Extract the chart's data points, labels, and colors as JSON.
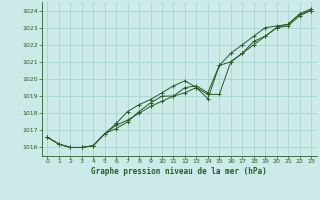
{
  "title": "Graphe pression niveau de la mer (hPa)",
  "bg_color": "#cceae8",
  "grid_color": "#aad4d0",
  "line_color": "#2d5a27",
  "xlim": [
    -0.5,
    23.5
  ],
  "ylim": [
    1015.5,
    1024.5
  ],
  "xticks": [
    0,
    1,
    2,
    3,
    4,
    5,
    6,
    7,
    8,
    9,
    10,
    11,
    12,
    13,
    14,
    15,
    16,
    17,
    18,
    19,
    20,
    21,
    22,
    23
  ],
  "yticks": [
    1016,
    1017,
    1018,
    1019,
    1020,
    1021,
    1022,
    1023,
    1024
  ],
  "line1_x": [
    0,
    1,
    2,
    3,
    4,
    5,
    6,
    7,
    8,
    9,
    10,
    11,
    12,
    13,
    14,
    15,
    16,
    17,
    18,
    19,
    20,
    21,
    22,
    23
  ],
  "line1_y": [
    1016.6,
    1016.2,
    1016.0,
    1016.0,
    1016.1,
    1016.8,
    1017.3,
    1017.6,
    1018.0,
    1018.4,
    1018.7,
    1019.0,
    1019.2,
    1019.5,
    1019.1,
    1019.1,
    1021.0,
    1021.5,
    1022.0,
    1022.5,
    1023.0,
    1023.1,
    1023.7,
    1024.0
  ],
  "line2_x": [
    0,
    1,
    2,
    3,
    4,
    5,
    6,
    7,
    8,
    9,
    10,
    11,
    12,
    13,
    14,
    15,
    16,
    17,
    18,
    19,
    20,
    21,
    22,
    23
  ],
  "line2_y": [
    1016.6,
    1016.2,
    1016.0,
    1016.0,
    1016.1,
    1016.8,
    1017.4,
    1018.1,
    1018.5,
    1018.8,
    1019.2,
    1019.6,
    1019.9,
    1019.5,
    1018.85,
    1020.8,
    1021.5,
    1022.0,
    1022.5,
    1023.0,
    1023.1,
    1023.2,
    1023.8,
    1024.1
  ],
  "line3_x": [
    0,
    1,
    2,
    3,
    4,
    5,
    6,
    7,
    8,
    9,
    10,
    11,
    12,
    13,
    14,
    15,
    16,
    17,
    18,
    19,
    20,
    21,
    22,
    23
  ],
  "line3_y": [
    1016.6,
    1016.2,
    1016.0,
    1016.0,
    1016.1,
    1016.8,
    1017.1,
    1017.5,
    1018.1,
    1018.6,
    1019.0,
    1019.0,
    1019.5,
    1019.6,
    1019.2,
    1020.8,
    1021.0,
    1021.5,
    1022.2,
    1022.5,
    1023.0,
    1023.2,
    1023.8,
    1024.0
  ]
}
